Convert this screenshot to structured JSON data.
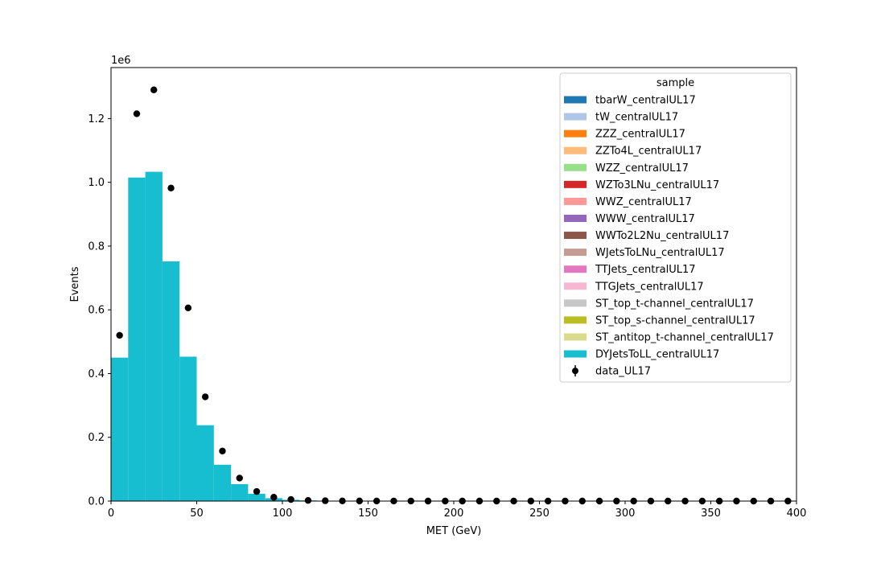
{
  "chart_data": {
    "type": "bar",
    "xlabel": "MET (GeV)",
    "ylabel": "Events",
    "offset_text": "1e6",
    "xlim": [
      0,
      400
    ],
    "ylim": [
      0,
      1.36
    ],
    "y_scale_factor": 1000000,
    "xticks": [
      "0",
      "50",
      "100",
      "150",
      "200",
      "250",
      "300",
      "350",
      "400"
    ],
    "yticks": [
      "0.0",
      "0.2",
      "0.4",
      "0.6",
      "0.8",
      "1.0",
      "1.2"
    ],
    "bin_edges": [
      0,
      10,
      20,
      30,
      40,
      50,
      60,
      70,
      80,
      90,
      100,
      110,
      120,
      130,
      140,
      150,
      160,
      170,
      180,
      190,
      200,
      210,
      220,
      230,
      240,
      250,
      260,
      270,
      280,
      290,
      300,
      310,
      320,
      330,
      340,
      350,
      360,
      370,
      380,
      390,
      400
    ],
    "mc_stack": [
      {
        "name": "tbarW_centralUL17",
        "color": "#1f77b4",
        "values": []
      },
      {
        "name": "tW_centralUL17",
        "color": "#aec7e8",
        "values": []
      },
      {
        "name": "ZZZ_centralUL17",
        "color": "#ff7f0e",
        "values": []
      },
      {
        "name": "ZZTo4L_centralUL17",
        "color": "#ffbb78",
        "values": []
      },
      {
        "name": "WZZ_centralUL17",
        "color": "#98df8a",
        "values": []
      },
      {
        "name": "WZTo3LNu_centralUL17",
        "color": "#d62728",
        "values": []
      },
      {
        "name": "WWZ_centralUL17",
        "color": "#ff9896",
        "values": []
      },
      {
        "name": "WWW_centralUL17",
        "color": "#9467bd",
        "values": []
      },
      {
        "name": "WWTo2L2Nu_centralUL17",
        "color": "#8c564b",
        "values": []
      },
      {
        "name": "WJetsToLNu_centralUL17",
        "color": "#c49c94",
        "values": []
      },
      {
        "name": "TTJets_centralUL17",
        "color": "#e377c2",
        "values": []
      },
      {
        "name": "TTGJets_centralUL17",
        "color": "#f7b6d2",
        "values": []
      },
      {
        "name": "ST_top_t-channel_centralUL17",
        "color": "#c7c7c7",
        "values": []
      },
      {
        "name": "ST_top_s-channel_centralUL17",
        "color": "#bcbd22",
        "values": []
      },
      {
        "name": "ST_antitop_t-channel_centralUL17",
        "color": "#dbdb8d",
        "values": []
      },
      {
        "name": "DYJetsToLL_centralUL17",
        "color": "#17becf",
        "values": [
          0.45,
          1.015,
          1.033,
          0.752,
          0.453,
          0.238,
          0.114,
          0.053,
          0.023,
          0.009,
          0.004,
          0.002,
          0.001,
          0.0005,
          0.0003,
          0.0002,
          0.0001,
          0.0001,
          0,
          0,
          0,
          0,
          0,
          0,
          0,
          0,
          0,
          0,
          0,
          0,
          0,
          0,
          0,
          0,
          0,
          0,
          0,
          0,
          0,
          0
        ]
      }
    ],
    "data": {
      "name": "data_UL17",
      "color": "#000000",
      "x": [
        5,
        15,
        25,
        35,
        45,
        55,
        65,
        75,
        85,
        95,
        105,
        115,
        125,
        135,
        145,
        155,
        165,
        175,
        185,
        195,
        205,
        215,
        225,
        235,
        245,
        255,
        265,
        275,
        285,
        295,
        305,
        315,
        325,
        335,
        345,
        355,
        365,
        375,
        385,
        395
      ],
      "y": [
        0.52,
        1.215,
        1.29,
        0.982,
        0.606,
        0.327,
        0.157,
        0.072,
        0.03,
        0.012,
        0.005,
        0.002,
        0.001,
        0.0005,
        0.0003,
        0.0002,
        0.0001,
        0.0001,
        0,
        0,
        0,
        0,
        0,
        0,
        0,
        0,
        0,
        0,
        0,
        0,
        0,
        0,
        0,
        0,
        0,
        0,
        0,
        0,
        0,
        0
      ]
    },
    "legend": {
      "title": "sample",
      "placement": "top-right",
      "entries": [
        "tbarW_centralUL17",
        "tW_centralUL17",
        "ZZZ_centralUL17",
        "ZZTo4L_centralUL17",
        "WZZ_centralUL17",
        "WZTo3LNu_centralUL17",
        "WWZ_centralUL17",
        "WWW_centralUL17",
        "WWTo2L2Nu_centralUL17",
        "WJetsToLNu_centralUL17",
        "TTJets_centralUL17",
        "TTGJets_centralUL17",
        "ST_top_t-channel_centralUL17",
        "ST_top_s-channel_centralUL17",
        "ST_antitop_t-channel_centralUL17",
        "DYJetsToLL_centralUL17",
        "data_UL17"
      ]
    },
    "grid": false
  }
}
